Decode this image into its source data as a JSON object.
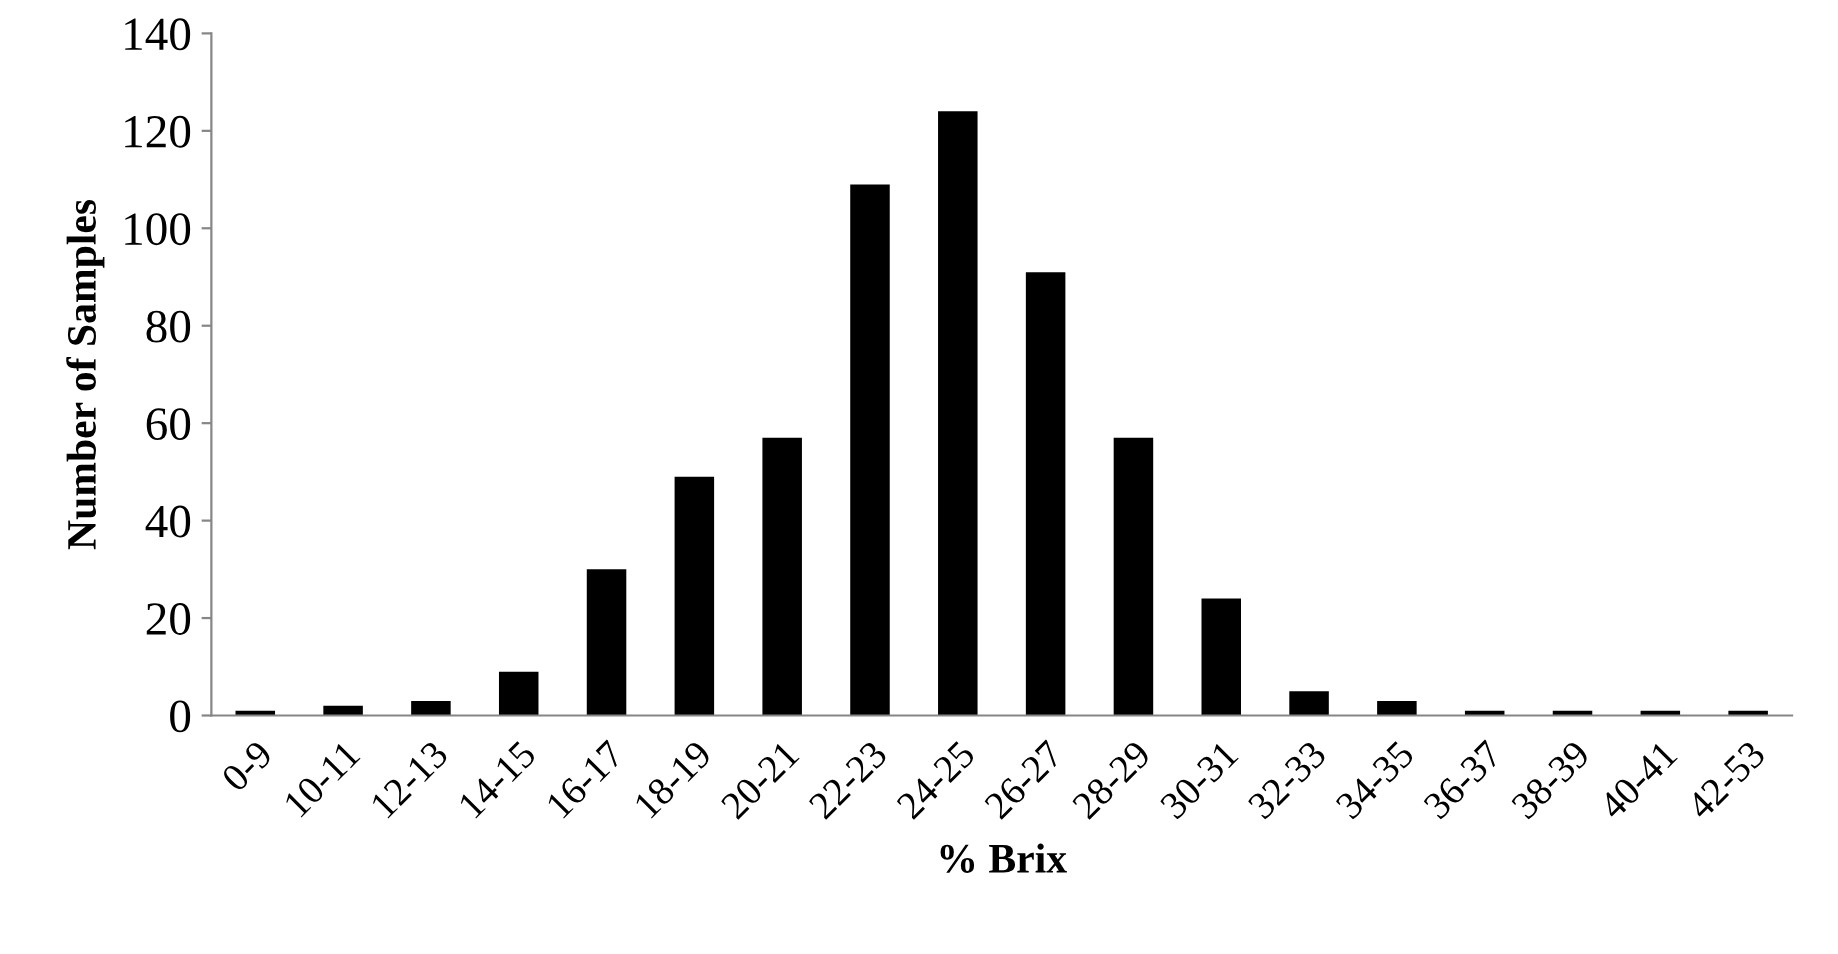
{
  "chart_data": {
    "type": "bar",
    "xlabel": "% Brix",
    "ylabel": "Number of Samples",
    "categories": [
      "0-9",
      "10-11",
      "12-13",
      "14-15",
      "16-17",
      "18-19",
      "20-21",
      "22-23",
      "24-25",
      "26-27",
      "28-29",
      "30-31",
      "32-33",
      "34-35",
      "36-37",
      "38-39",
      "40-41",
      "42-53"
    ],
    "values": [
      1,
      2,
      3,
      9,
      30,
      49,
      57,
      109,
      124,
      91,
      57,
      24,
      5,
      3,
      1,
      1,
      1,
      1
    ],
    "color": "#000000",
    "ylim": [
      0,
      140
    ],
    "yticks": [
      0,
      20,
      40,
      60,
      80,
      100,
      120,
      140
    ],
    "grid": false
  }
}
